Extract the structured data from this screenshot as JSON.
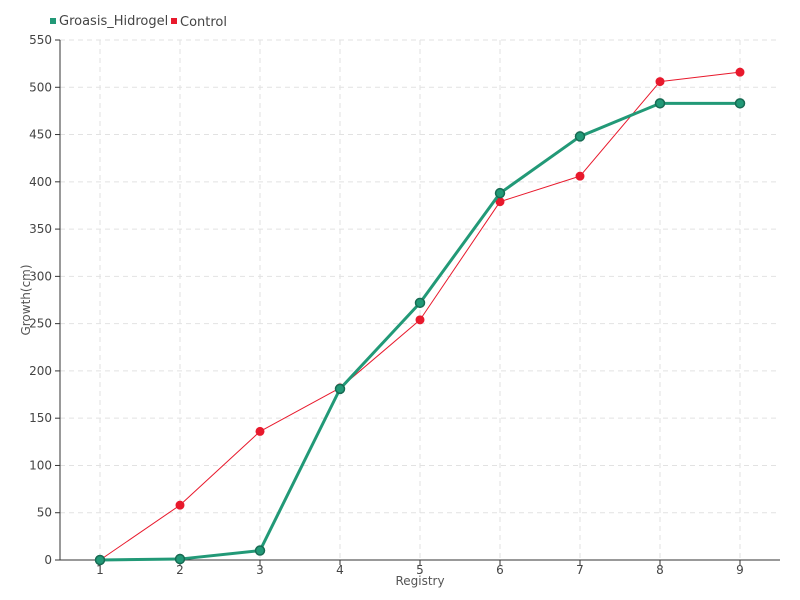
{
  "chart_data": {
    "type": "line",
    "title": "",
    "xlabel": "Registry",
    "ylabel": "Growth(cm)",
    "categories": [
      "1",
      "2",
      "3",
      "4",
      "5",
      "6",
      "7",
      "8",
      "9"
    ],
    "ylim": [
      0,
      550
    ],
    "yticks": [
      "0",
      "50",
      "100",
      "150",
      "200",
      "250",
      "300",
      "350",
      "400",
      "450",
      "500",
      "550"
    ],
    "grid": true,
    "legend_position": "top-left",
    "series": [
      {
        "name": "Groasis_Hidrogel",
        "color": "#229977",
        "values": [
          0,
          1,
          10,
          181,
          272,
          388,
          448,
          483,
          483
        ]
      },
      {
        "name": "Control",
        "color": "#e8192c",
        "values": [
          0,
          58,
          136,
          182,
          254,
          379,
          406,
          506,
          516
        ]
      }
    ]
  }
}
